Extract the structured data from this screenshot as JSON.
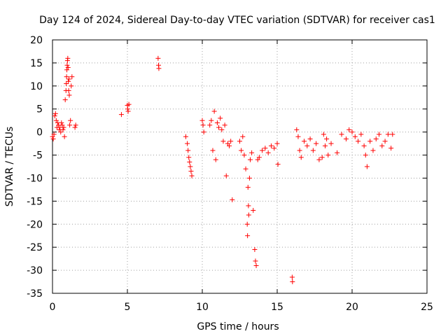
{
  "chart_data": {
    "type": "scatter",
    "title": "Day 124 of 2024, Sidereal Day-to-day VTEC variation (SDTVAR) for receiver cas1",
    "xlabel": "GPS time / hours",
    "ylabel": "SDTVAR / TECUs",
    "xlim": [
      0,
      25
    ],
    "ylim": [
      -35,
      20
    ],
    "xticks": [
      0,
      5,
      10,
      15,
      20,
      25
    ],
    "yticks": [
      20,
      15,
      10,
      5,
      0,
      -5,
      -10,
      -15,
      -20,
      -25,
      -30,
      -35
    ],
    "xtick_labels": [
      "0",
      "5",
      "10",
      "15",
      "20",
      "25"
    ],
    "ytick_labels": [
      "20",
      "15",
      "10",
      "5",
      "0",
      "-5",
      "-10",
      "-15",
      "-20",
      "-25",
      "-30",
      "-35"
    ],
    "grid": true,
    "marker": "+",
    "marker_color": "#ff0000",
    "series": [
      {
        "name": "SDTVAR",
        "x": [
          0.0,
          0.05,
          0.1,
          0.15,
          0.2,
          0.25,
          0.3,
          0.35,
          0.4,
          0.45,
          0.5,
          0.55,
          0.6,
          0.65,
          0.7,
          0.75,
          0.8,
          0.85,
          0.9,
          0.92,
          0.94,
          0.96,
          0.98,
          1.0,
          1.02,
          1.04,
          1.06,
          1.08,
          1.1,
          1.12,
          1.15,
          1.2,
          1.25,
          1.3,
          1.5,
          1.55,
          4.6,
          5.0,
          5.02,
          5.05,
          5.1,
          7.05,
          7.08,
          7.1,
          8.9,
          9.0,
          9.05,
          9.1,
          9.15,
          9.2,
          9.25,
          9.3,
          10.0,
          10.05,
          10.1,
          10.5,
          10.6,
          10.7,
          10.8,
          10.9,
          11.0,
          11.1,
          11.2,
          11.3,
          11.4,
          11.5,
          11.6,
          11.7,
          11.8,
          11.9,
          12.0,
          12.5,
          12.6,
          12.7,
          12.8,
          12.9,
          13.0,
          13.02,
          13.05,
          13.08,
          13.1,
          13.15,
          13.2,
          13.3,
          13.4,
          13.5,
          13.55,
          13.6,
          13.7,
          13.8,
          14.0,
          14.2,
          14.4,
          14.6,
          14.8,
          15.0,
          15.05,
          16.0,
          16.02,
          16.3,
          16.4,
          16.5,
          16.6,
          16.8,
          17.0,
          17.2,
          17.4,
          17.6,
          17.8,
          18.0,
          18.1,
          18.2,
          18.3,
          18.4,
          18.6,
          19.0,
          19.3,
          19.6,
          19.8,
          20.0,
          20.2,
          20.4,
          20.6,
          20.8,
          20.9,
          21.0,
          21.2,
          21.4,
          21.6,
          21.8,
          22.0,
          22.2,
          22.4,
          22.6,
          22.7
        ],
        "y": [
          -1.0,
          -1.5,
          -0.5,
          3.5,
          4.0,
          2.5,
          1.0,
          2.0,
          1.5,
          0.5,
          1.0,
          0.0,
          2.0,
          1.5,
          0.5,
          1.0,
          -1.0,
          7.0,
          9.0,
          10.5,
          12.0,
          13.5,
          14.5,
          15.5,
          16.0,
          14.0,
          11.0,
          9.0,
          11.5,
          8.0,
          1.5,
          2.5,
          10.0,
          12.0,
          1.0,
          1.5,
          3.8,
          5.8,
          5.0,
          4.5,
          6.0,
          16.0,
          14.5,
          13.8,
          -1.0,
          -2.5,
          -4.0,
          -5.5,
          -6.5,
          -7.5,
          -8.5,
          -9.5,
          2.5,
          1.5,
          0.0,
          1.5,
          2.5,
          -4.0,
          4.5,
          -6.0,
          2.0,
          1.0,
          3.0,
          0.5,
          -2.0,
          1.5,
          -9.5,
          -2.5,
          -3.0,
          -2.0,
          -14.7,
          -2.0,
          -4.0,
          -1.0,
          -5.0,
          -8.0,
          -20.0,
          -22.5,
          -12.0,
          -16.0,
          -18.0,
          -10.0,
          -6.0,
          -4.5,
          -17.0,
          -25.5,
          -28.0,
          -29.0,
          -6.0,
          -5.5,
          -4.0,
          -3.5,
          -4.5,
          -3.0,
          -3.5,
          -2.5,
          -7.0,
          -31.5,
          -32.5,
          0.5,
          -1.0,
          -4.0,
          -5.5,
          -2.0,
          -3.0,
          -1.5,
          -4.0,
          -2.5,
          -6.0,
          -5.5,
          -0.5,
          -3.0,
          -1.5,
          -5.0,
          -2.5,
          -4.5,
          -0.5,
          -1.5,
          0.5,
          0.0,
          -1.0,
          -2.0,
          -0.5,
          -3.0,
          -5.0,
          -7.5,
          -2.0,
          -4.0,
          -1.5,
          -0.5,
          -3.0,
          -2.0,
          -0.5,
          -3.5,
          -0.5
        ]
      }
    ]
  }
}
